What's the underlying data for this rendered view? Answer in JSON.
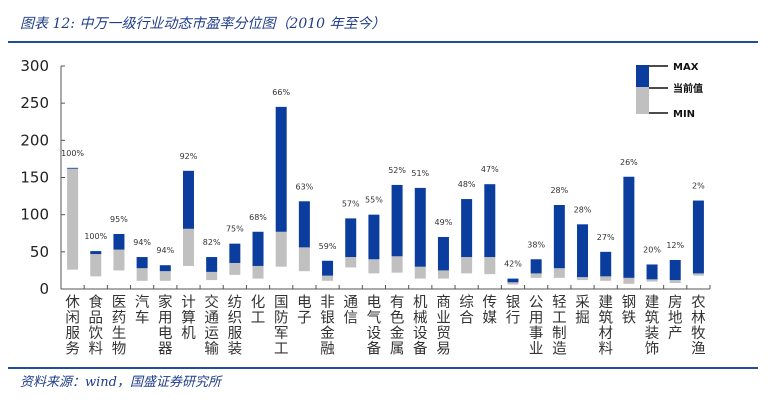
{
  "header": {
    "title": "图表 12:  中万一级行业动态市盈率分位图（2010 年至今）"
  },
  "footer": {
    "source": "资料来源：wind，国盛证券研究所"
  },
  "colors": {
    "max_bar": "#0a3d9e",
    "min_bar": "#c0c0c0",
    "axis": "#555555",
    "rule": "#1f4e9c"
  },
  "chart_data": {
    "type": "bar",
    "title": "中万一级行业动态市盈率分位图（2010 年至今）",
    "xlabel": "",
    "ylabel": "",
    "ylim": [
      0,
      300
    ],
    "yticks": [
      0,
      50,
      100,
      150,
      200,
      250,
      300
    ],
    "grid": false,
    "legend": {
      "placement": "top-right",
      "entries": [
        "MAX",
        "当前值",
        "MIN"
      ]
    },
    "categories": [
      "休闲服务",
      "食品饮料",
      "医药生物",
      "汽车",
      "家用电器",
      "计算机",
      "交通运输",
      "纺织服装",
      "化工",
      "国防军工",
      "电子",
      "非银金融",
      "通信",
      "电气设备",
      "有色金属",
      "机械设备",
      "商业贸易",
      "综合",
      "传媒",
      "银行",
      "公用事业",
      "轻工制造",
      "采掘",
      "建筑材料",
      "钢铁",
      "建筑装饰",
      "房地产",
      "农林牧渔"
    ],
    "series": [
      {
        "name": "MAX",
        "values": [
          163,
          51,
          74,
          43,
          32,
          159,
          43,
          61,
          77,
          245,
          118,
          38,
          95,
          100,
          140,
          136,
          70,
          121,
          141,
          14,
          40,
          113,
          87,
          50,
          151,
          33,
          39,
          119
        ]
      },
      {
        "name": "当前值",
        "values": [
          162,
          47,
          53,
          28,
          24,
          81,
          23,
          35,
          31,
          77,
          56,
          18,
          43,
          40,
          44,
          30,
          25,
          43,
          43,
          9,
          21,
          28,
          16,
          17,
          15,
          13,
          12,
          21
        ]
      },
      {
        "name": "MIN",
        "values": [
          26,
          17,
          25,
          11,
          11,
          31,
          12,
          19,
          14,
          30,
          24,
          11,
          29,
          21,
          22,
          14,
          14,
          21,
          20,
          6,
          15,
          15,
          12,
          11,
          7,
          10,
          8,
          18
        ]
      }
    ],
    "percentile_labels": [
      "100%",
      "100%",
      "95%",
      "94%",
      "94%",
      "92%",
      "82%",
      "75%",
      "68%",
      "66%",
      "63%",
      "59%",
      "57%",
      "55%",
      "52%",
      "51%",
      "49%",
      "48%",
      "47%",
      "42%",
      "38%",
      "28%",
      "28%",
      "27%",
      "26%",
      "20%",
      "12%",
      "2%"
    ]
  }
}
